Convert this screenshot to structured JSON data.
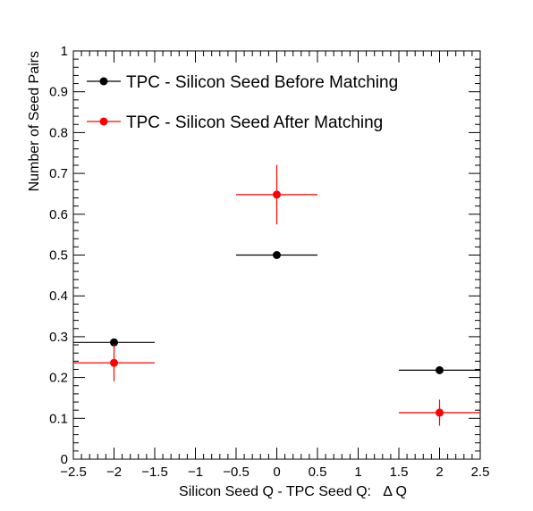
{
  "chart_data": {
    "type": "scatter",
    "xlabel": "Silicon Seed Q - TPC Seed Q:   Δ Q",
    "ylabel": "Number of Seed Pairs",
    "xlim": [
      -2.5,
      2.5
    ],
    "ylim": [
      0,
      1
    ],
    "x_ticks": [
      -2.5,
      -2,
      -1.5,
      -1,
      -0.5,
      0,
      0.5,
      1,
      1.5,
      2,
      2.5
    ],
    "x_tick_labels": [
      "−2.5",
      "−2",
      "−1.5",
      "−1",
      "−0.5",
      "0",
      "0.5",
      "1",
      "1.5",
      "2",
      "2.5"
    ],
    "y_ticks": [
      0,
      0.1,
      0.2,
      0.3,
      0.4,
      0.5,
      0.6,
      0.7,
      0.8,
      0.9,
      1
    ],
    "y_tick_labels": [
      "0",
      "0.1",
      "0.2",
      "0.3",
      "0.4",
      "0.5",
      "0.6",
      "0.7",
      "0.8",
      "0.9",
      "1"
    ],
    "grid": false,
    "legend_position": "top-left",
    "series": [
      {
        "name": "TPC - Silicon Seed Before Matching",
        "color": "#000000",
        "points": [
          {
            "x": -2,
            "y": 0.286,
            "xerr": 0.5,
            "yerr": 0
          },
          {
            "x": 0,
            "y": 0.5,
            "xerr": 0.5,
            "yerr": 0
          },
          {
            "x": 2,
            "y": 0.218,
            "xerr": 0.5,
            "yerr": 0
          }
        ]
      },
      {
        "name": "TPC - Silicon Seed After Matching",
        "color": "#ff0000",
        "points": [
          {
            "x": -2,
            "y": 0.236,
            "xerr": 0.5,
            "yerr": 0.045
          },
          {
            "x": 0,
            "y": 0.648,
            "xerr": 0.5,
            "yerr": 0.073
          },
          {
            "x": 2,
            "y": 0.114,
            "xerr": 0.5,
            "yerr": 0.032
          }
        ]
      }
    ]
  }
}
